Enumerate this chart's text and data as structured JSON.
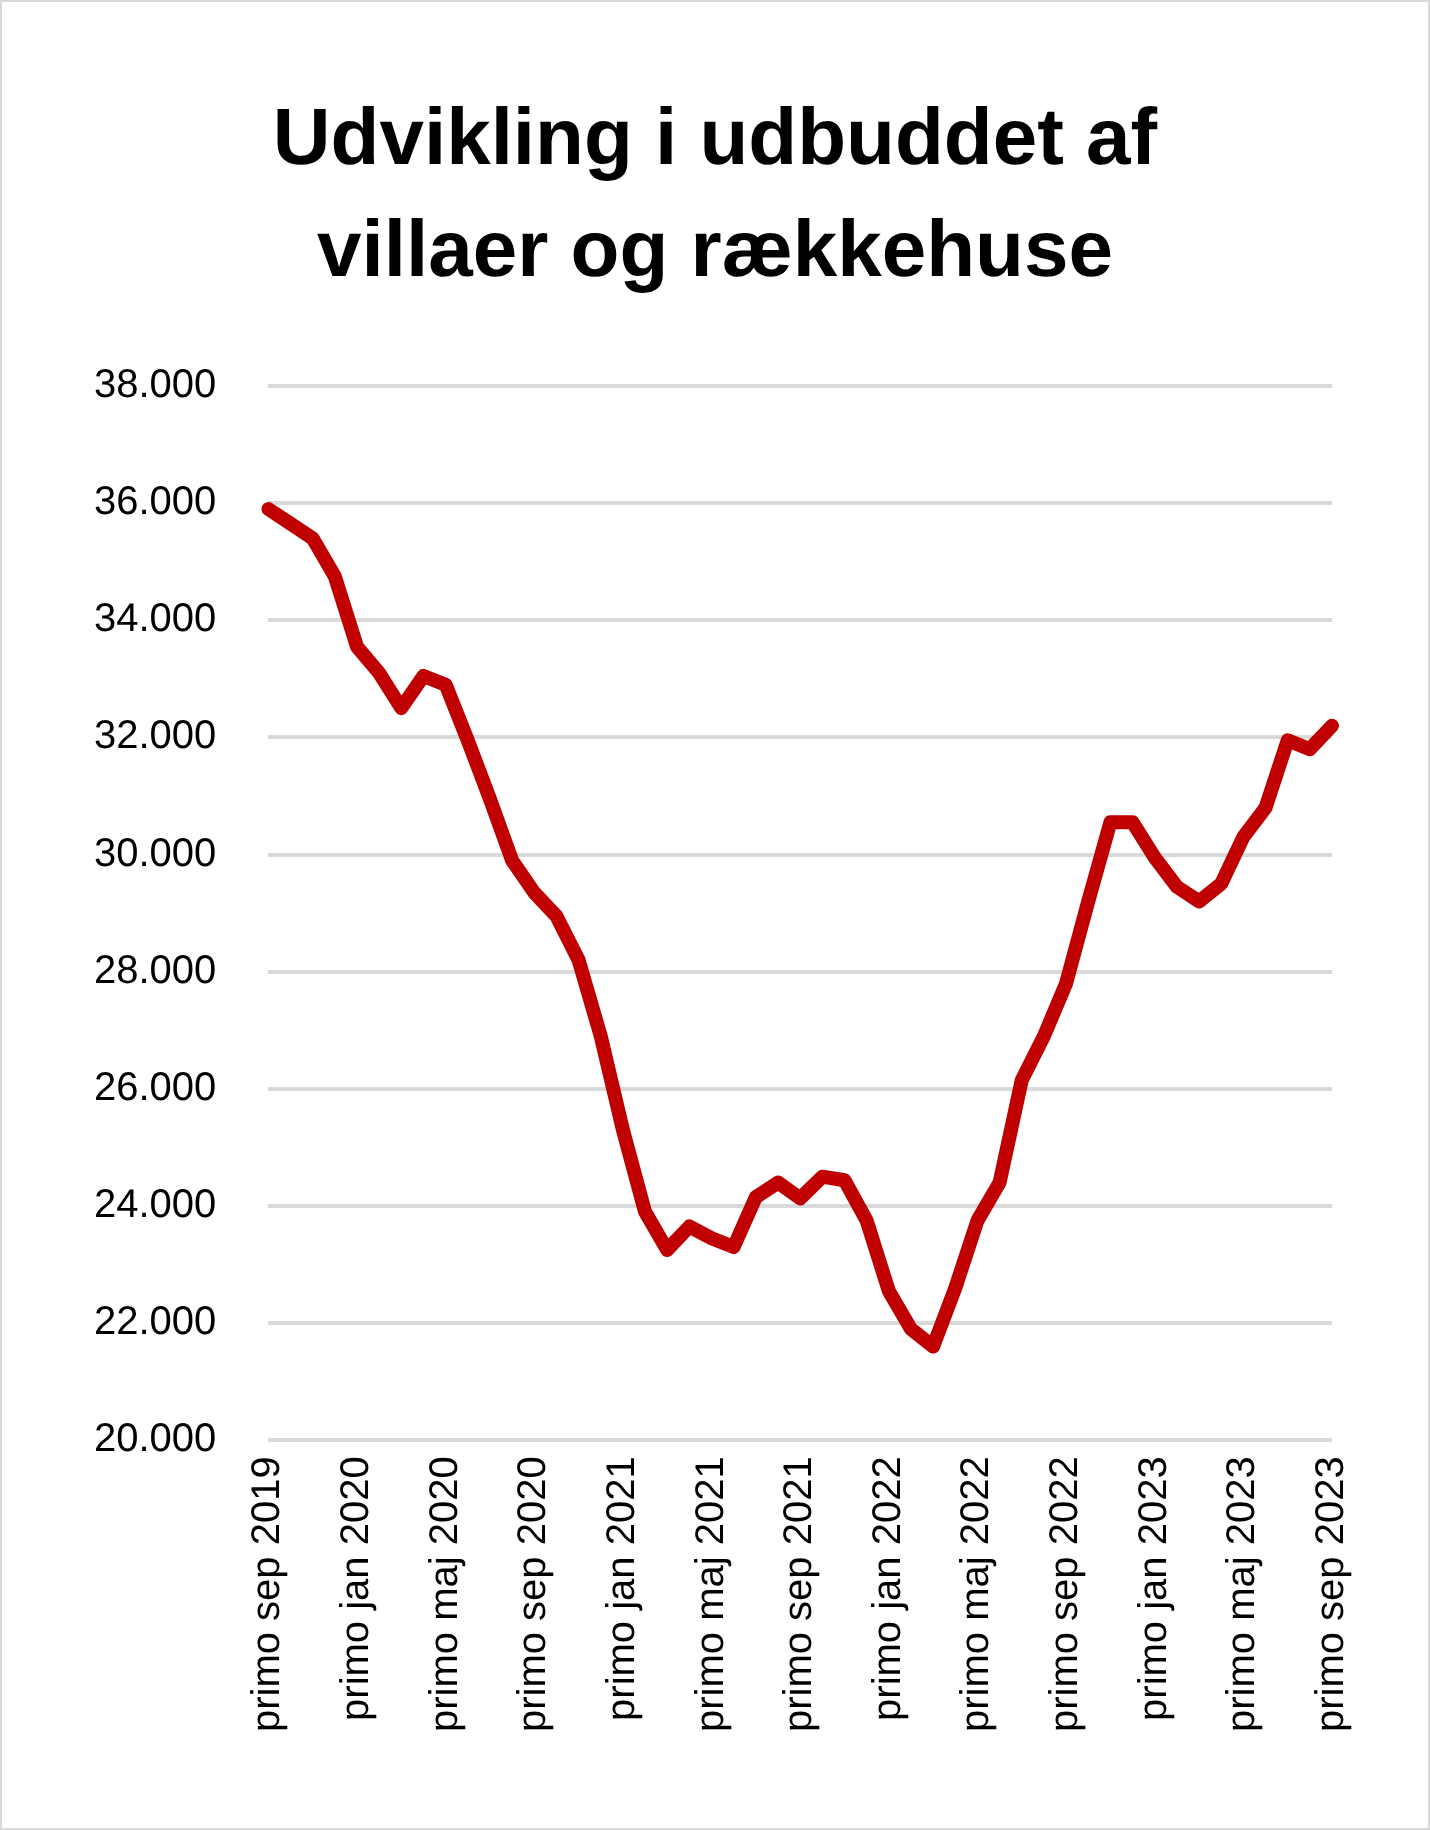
{
  "chart_data": {
    "type": "line",
    "title": "Udvikling i udbuddet af villaer og rækkehuse",
    "categories": [
      "primo sep 2019",
      null,
      null,
      null,
      "primo jan 2020",
      null,
      null,
      null,
      "primo maj 2020",
      null,
      null,
      null,
      "primo sep 2020",
      null,
      null,
      null,
      "primo jan 2021",
      null,
      null,
      null,
      "primo maj 2021",
      null,
      null,
      null,
      "primo sep 2021",
      null,
      null,
      null,
      "primo jan 2022",
      null,
      null,
      null,
      "primo maj 2022",
      null,
      null,
      null,
      "primo sep 2022",
      null,
      null,
      null,
      "primo jan 2023",
      null,
      null,
      null,
      "primo maj 2023",
      null,
      null,
      null,
      "primo sep 2023"
    ],
    "series": [
      {
        "color": "#c00000",
        "values": [
          35900,
          35650,
          35400,
          34750,
          33550,
          33100,
          32500,
          33050,
          32900,
          31950,
          30950,
          29900,
          29350,
          28950,
          28200,
          26900,
          25300,
          23900,
          23250,
          23650,
          23450,
          23300,
          24150,
          24400,
          24130,
          24500,
          24440,
          23750,
          22550,
          21900,
          21600,
          22600,
          23750,
          24400,
          26150,
          26900,
          27800,
          29200,
          30550,
          30550,
          29950,
          29450,
          29200,
          29500,
          30300,
          30800,
          31950,
          31800,
          32200
        ]
      }
    ],
    "ylim": [
      20000,
      38000
    ],
    "yticks": [
      {
        "value": 20000,
        "label": "20.000"
      },
      {
        "value": 22000,
        "label": "22.000"
      },
      {
        "value": 24000,
        "label": "24.000"
      },
      {
        "value": 26000,
        "label": "26.000"
      },
      {
        "value": 28000,
        "label": "28.000"
      },
      {
        "value": 30000,
        "label": "30.000"
      },
      {
        "value": 32000,
        "label": "32.000"
      },
      {
        "value": 34000,
        "label": "34.000"
      },
      {
        "value": 36000,
        "label": "36.000"
      },
      {
        "value": 38000,
        "label": "38.000"
      }
    ],
    "grid": "y",
    "marker": "none",
    "line_style": "solid"
  }
}
